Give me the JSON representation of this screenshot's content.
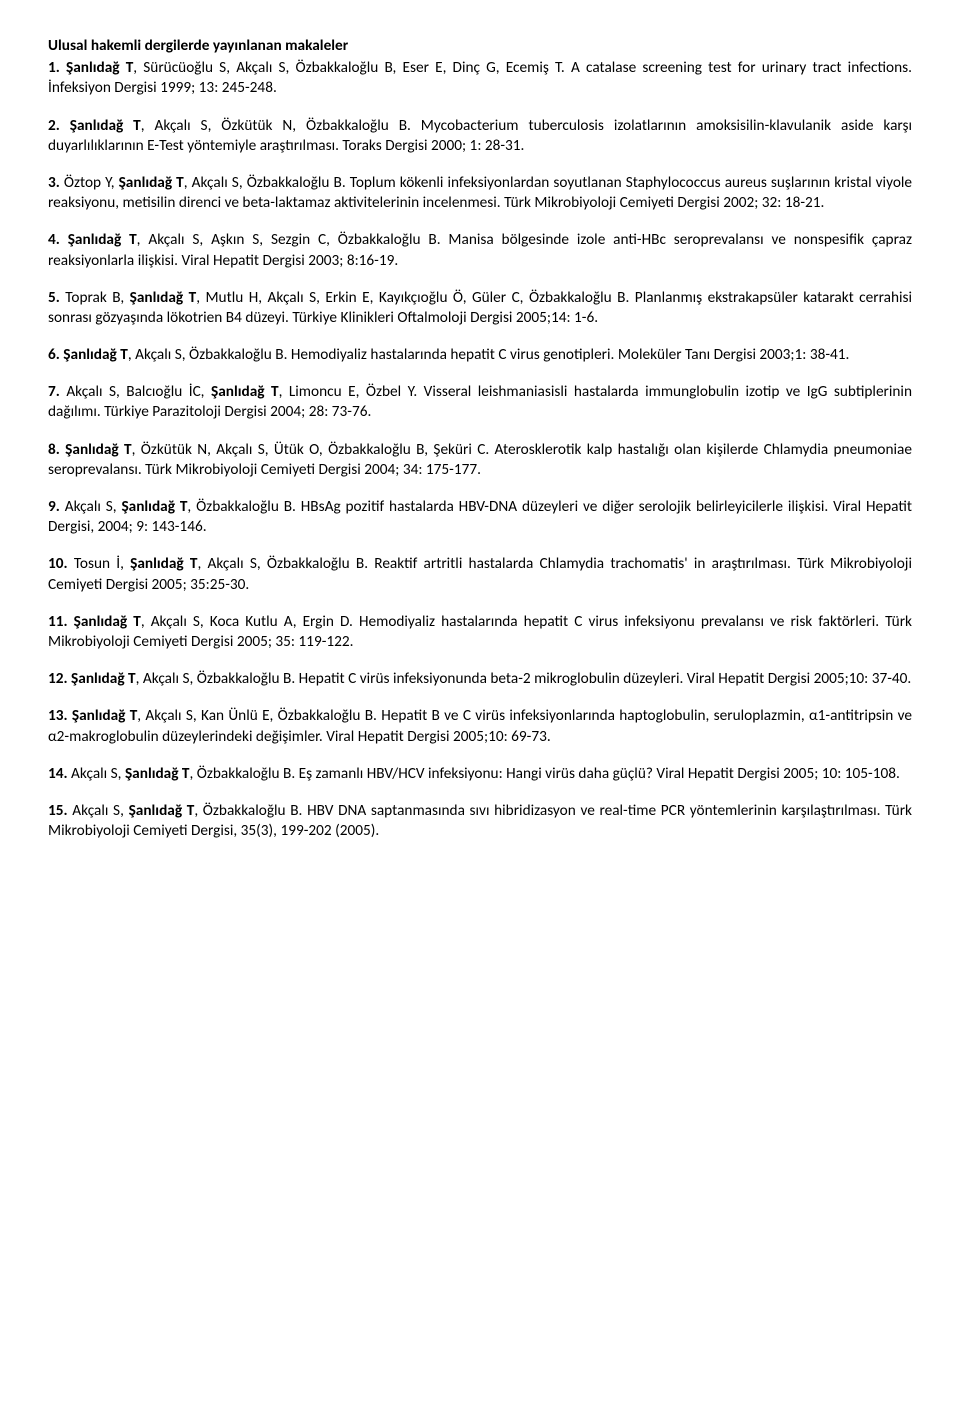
{
  "heading": "Ulusal hakemli dergilerde yayınlanan makaleler",
  "entries": [
    {
      "num": "1.",
      "bold1": "Şanlıdağ T",
      "pre": ", Sürücüoğlu S, Akçalı S, Özbakkaloğlu B, Eser E, Dinç G, Ecemiş T. A catalase screening test for urinary tract infections. İnfeksiyon Dergisi 1999; 13: 245-248."
    },
    {
      "num": "2. Şanlıdağ T",
      "pre": ", Akçalı S, Özkütük N, Özbakkaloğlu B. Mycobacterium tuberculosis izolatlarının amoksisilin-klavulanik aside karşı duyarlılıklarının E-Test yöntemiyle araştırılması. Toraks Dergisi 2000; 1: 28-31."
    },
    {
      "num": "3.",
      "pre": " Öztop Y, ",
      "bold1": "Şanlıdağ T",
      "post": ", Akçalı S, Özbakkaloğlu B. Toplum kökenli infeksiyonlardan soyutlanan Staphylococcus aureus suşlarının kristal viyole reaksiyonu, metisilin direnci ve beta-laktamaz aktivitelerinin incelenmesi. Türk Mikrobiyoloji Cemiyeti Dergisi 2002; 32: 18-21."
    },
    {
      "num": "4. Şanlıdağ T",
      "pre": ", Akçalı S, Aşkın S, Sezgin C, Özbakkaloğlu B. Manisa bölgesinde izole anti-HBc seroprevalansı ve nonspesifik çapraz reaksiyonlarla ilişkisi. Viral Hepatit Dergisi 2003; 8:16-19."
    },
    {
      "num": "5.",
      "pre": " Toprak B, ",
      "bold1": "Şanlıdağ T",
      "post": ", Mutlu H, Akçalı S, Erkin E, Kayıkçıoğlu Ö, Güler C,  Özbakkaloğlu B. Planlanmış ekstrakapsüler katarakt cerrahisi sonrası gözyaşında lökotrien B4 düzeyi. Türkiye Klinikleri Oftalmoloji Dergisi 2005;14: 1-6."
    },
    {
      "num": "6. Şanlıdağ T",
      "pre": ", Akçalı S, Özbakkaloğlu B. Hemodiyaliz hastalarında hepatit C virus genotipleri. Moleküler Tanı Dergisi 2003;1: 38-41."
    },
    {
      "num": "7.",
      "pre": " Akçalı S, Balcıoğlu İC, ",
      "bold1": "Şanlıdağ T",
      "post": ", Limoncu E, Özbel Y. Visseral leishmaniasisli hastalarda immunglobulin izotip ve IgG subtiplerinin dağılımı. Türkiye Parazitoloji Dergisi 2004; 28: 73-76."
    },
    {
      "num": "8. Şanlıdağ T",
      "pre": ", Özkütük N, Akçalı S, Ütük O, Özbakkaloğlu B, Şeküri C. Aterosklerotik kalp hastalığı olan kişilerde Chlamydia pneumoniae seroprevalansı. Türk Mikrobiyoloji Cemiyeti Dergisi 2004; 34: 175-177."
    },
    {
      "num": "9.",
      "pre": " Akçalı S, ",
      "bold1": "Şanlıdağ T",
      "post": ", Özbakkaloğlu B. HBsAg pozitif hastalarda HBV-DNA düzeyleri ve diğer serolojik belirleyicilerle ilişkisi. Viral Hepatit Dergisi, 2004; 9: 143-146."
    },
    {
      "num": "10.",
      "pre": " Tosun İ, ",
      "bold1": "Şanlıdağ T",
      "post": ", Akçalı S, Özbakkaloğlu B. Reaktif artritli hastalarda Chlamydia trachomatis' in araştırılması. Türk Mikrobiyoloji Cemiyeti Dergisi 2005; 35:25-30."
    },
    {
      "num": "11. Şanlıdağ T",
      "pre": ",  Akçalı S, Koca Kutlu A, Ergin D. Hemodiyaliz hastalarında hepatit C virus infeksiyonu prevalansı ve risk faktörleri. Türk Mikrobiyoloji Cemiyeti Dergisi  2005; 35: 119-122."
    },
    {
      "num": "12. Şanlıdağ T",
      "pre": ", Akçalı S, Özbakkaloğlu B. Hepatit C virüs infeksiyonunda beta-2 mikroglobulin düzeyleri. Viral Hepatit Dergisi 2005;10: 37-40."
    },
    {
      "num": "13. Şanlıdağ T",
      "pre": ", Akçalı S, Kan Ünlü E, Özbakkaloğlu B. Hepatit B ve C virüs infeksiyonlarında haptoglobulin, seruloplazmin, α1-antitripsin ve α2-makroglobulin düzeylerindeki değişimler. Viral Hepatit Dergisi  2005;10: 69-73."
    },
    {
      "num": "14.",
      "pre": " Akçalı S, ",
      "bold1": "Şanlıdağ T",
      "post": ", Özbakkaloğlu B. Eş zamanlı HBV/HCV infeksiyonu: Hangi virüs daha güçlü? Viral Hepatit Dergisi 2005; 10: 105-108."
    },
    {
      "num": "15.",
      "pre": " Akçalı S, ",
      "bold1": "Şanlıdağ T",
      "post": ", Özbakkaloğlu B. HBV DNA saptanmasında sıvı hibridizasyon ve real-time PCR yöntemlerinin karşılaştırılması. Türk Mikrobiyoloji Cemiyeti Dergisi, 35(3),   199-202 (2005)."
    }
  ]
}
